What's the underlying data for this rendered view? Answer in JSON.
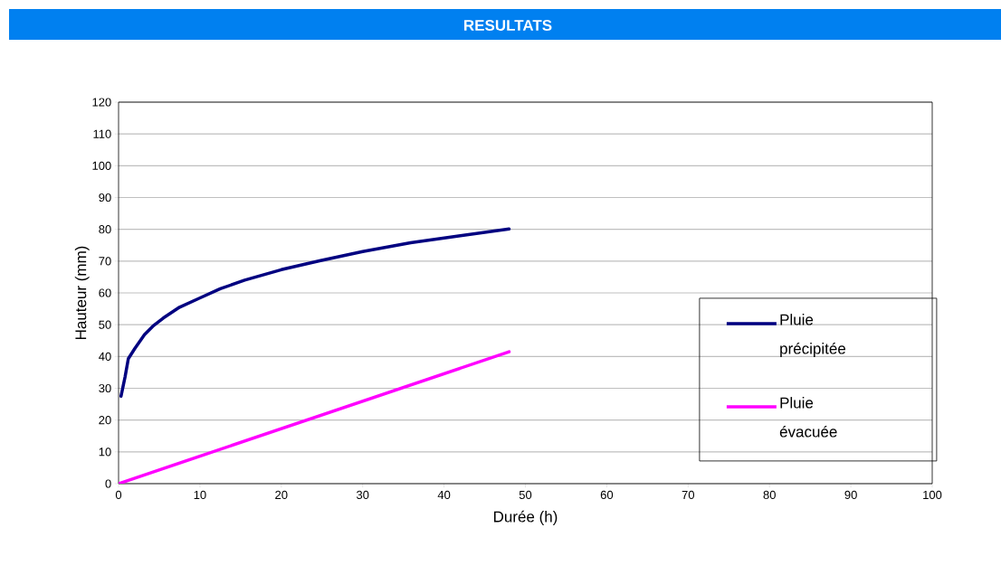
{
  "chart_data": {
    "type": "line",
    "title": "RESULTATS",
    "xlabel": "Durée (h)",
    "ylabel": "Hauteur (mm)",
    "xlim": [
      0,
      100
    ],
    "xticks": [
      0,
      10,
      20,
      30,
      40,
      50,
      60,
      70,
      80,
      90,
      100
    ],
    "ylim": [
      0,
      120
    ],
    "yticks": [
      0,
      10,
      20,
      30,
      40,
      50,
      60,
      70,
      80,
      90,
      100,
      110,
      120
    ],
    "grid": "y",
    "legend": "right",
    "marker": "none",
    "line_style": "solid",
    "series": [
      {
        "name": "Pluie précipitée",
        "color": "#000080",
        "x": [
          0.3,
          0.8,
          1.2,
          2,
          3.2,
          4.2,
          5.5,
          7.5,
          9.9,
          12.5,
          15.5,
          20,
          24.7,
          30,
          35.9,
          42,
          48
        ],
        "values": [
          27.5,
          33.6,
          39.3,
          42.5,
          46.9,
          49.5,
          52.1,
          55.5,
          58.3,
          61.3,
          64,
          67.3,
          70.1,
          73,
          75.8,
          78,
          80.1
        ]
      },
      {
        "name": "Pluie évacuée",
        "color": "#ff00ff",
        "x": [
          0,
          48
        ],
        "values": [
          0,
          41.5
        ]
      }
    ]
  }
}
